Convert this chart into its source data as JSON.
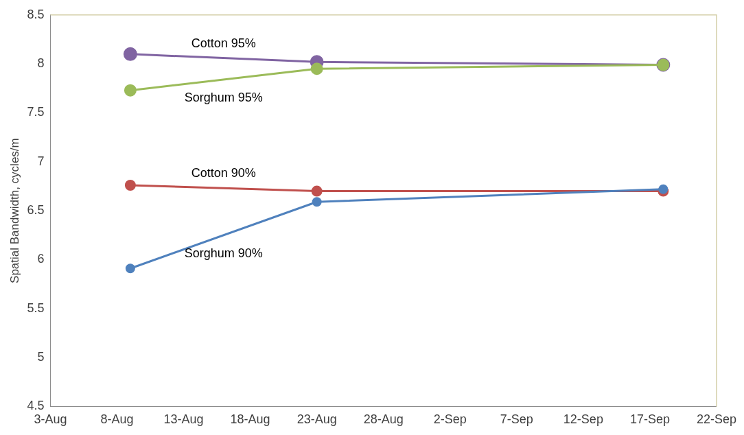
{
  "chart_data": {
    "type": "line",
    "ylabel": "Spatial Bandwidth, cycles/m",
    "x": [
      "--08-09",
      "--08-23",
      "--09-18"
    ],
    "series": [
      {
        "name": "Sorghum 90%",
        "color": "#4f81bd",
        "values": [
          5.91,
          6.59,
          6.72
        ]
      },
      {
        "name": "Cotton 90%",
        "color": "#c0504d",
        "values": [
          6.76,
          6.7,
          6.7
        ]
      },
      {
        "name": "Sorghum 95%",
        "color": "#9bbb59",
        "values": [
          7.73,
          7.95,
          7.99
        ]
      },
      {
        "name": "Cotton 95%",
        "color": "#8064a2",
        "values": [
          8.1,
          8.02,
          7.99
        ]
      }
    ],
    "xlim": [
      "--08-03",
      "--09-22"
    ],
    "xticks": [
      {
        "value": "--08-03",
        "label": "3-Aug"
      },
      {
        "value": "--08-08",
        "label": "8-Aug"
      },
      {
        "value": "--08-13",
        "label": "13-Aug"
      },
      {
        "value": "--08-18",
        "label": "18-Aug"
      },
      {
        "value": "--08-23",
        "label": "23-Aug"
      },
      {
        "value": "--08-28",
        "label": "28-Aug"
      },
      {
        "value": "--09-02",
        "label": "2-Sep"
      },
      {
        "value": "--09-07",
        "label": "7-Sep"
      },
      {
        "value": "--09-12",
        "label": "12-Sep"
      },
      {
        "value": "--09-17",
        "label": "17-Sep"
      },
      {
        "value": "--09-22",
        "label": "22-Sep"
      }
    ],
    "ylim": [
      4.5,
      8.5
    ],
    "yticks": [
      4.5,
      5,
      5.5,
      6,
      6.5,
      7,
      7.5,
      8,
      8.5
    ],
    "grid": false,
    "legend": false,
    "marker": "circle",
    "line_style": "solid"
  }
}
